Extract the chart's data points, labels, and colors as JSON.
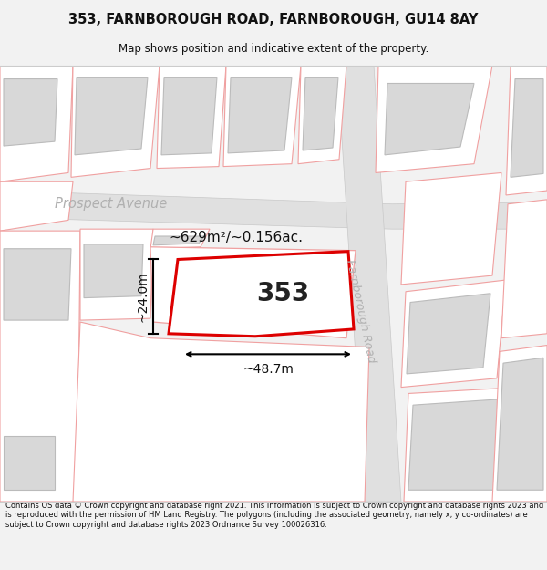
{
  "title_line1": "353, FARNBOROUGH ROAD, FARNBOROUGH, GU14 8AY",
  "title_line2": "Map shows position and indicative extent of the property.",
  "footer_text": "Contains OS data © Crown copyright and database right 2021. This information is subject to Crown copyright and database rights 2023 and is reproduced with the permission of HM Land Registry. The polygons (including the associated geometry, namely x, y co-ordinates) are subject to Crown copyright and database rights 2023 Ordnance Survey 100026316.",
  "pink": "#f0a0a0",
  "red": "#dd0000",
  "gray_bld": "#d8d8d8",
  "road_gray": "#e0e0e0",
  "road_edge": "#c8c8c8",
  "white": "#ffffff",
  "width_label": "~48.7m",
  "height_label": "~24.0m",
  "area_label": "~629m²/~0.156ac.",
  "number_label": "353",
  "road_label_1": "Prospect Avenue",
  "road_label_2": "Farnborough Road"
}
